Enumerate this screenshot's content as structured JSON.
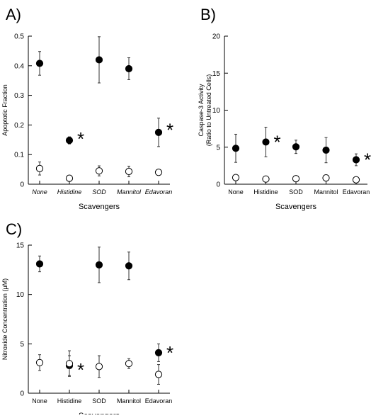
{
  "chart_data": [
    {
      "panel_label": "A)",
      "type": "scatter",
      "xlabel": "Scavengers",
      "ylabel": "Apoptotic Fraction",
      "categories": [
        "None",
        "Histidine",
        "SOD",
        "Mannitol",
        "Edavoran"
      ],
      "italic_categories": true,
      "ylim": [
        0,
        0.5
      ],
      "yticks": [
        "0",
        "0.1",
        "0.2",
        "0.3",
        "0.4",
        "0.5"
      ],
      "series": [
        {
          "marker": "filled-circle",
          "values": [
            0.408,
            0.148,
            0.42,
            0.39,
            0.175
          ],
          "errors": [
            0.04,
            0.012,
            0.078,
            0.037,
            0.048
          ]
        },
        {
          "marker": "open-circle",
          "values": [
            0.053,
            0.02,
            0.045,
            0.043,
            0.04
          ],
          "errors": [
            0.022,
            0.0,
            0.017,
            0.018,
            0.0
          ]
        }
      ],
      "annotations": [
        {
          "text": "*",
          "category": "Histidine",
          "y": 0.16
        },
        {
          "text": "*",
          "category": "Edavoran",
          "y": 0.19
        }
      ]
    },
    {
      "panel_label": "B)",
      "type": "scatter",
      "xlabel": "Scavengers",
      "ylabel": [
        "Caspase-3 Activity",
        "(Ratio to Untreated Cells)"
      ],
      "categories": [
        "None",
        "Histidine",
        "SOD",
        "Mannitol",
        "Edavoran"
      ],
      "italic_categories": false,
      "ylim": [
        0,
        20
      ],
      "yticks": [
        "0",
        "5",
        "10",
        "15",
        "20"
      ],
      "series": [
        {
          "marker": "filled-circle",
          "values": [
            4.85,
            5.7,
            5.05,
            4.6,
            3.3
          ],
          "errors": [
            1.9,
            2.0,
            0.9,
            1.7,
            0.8
          ]
        },
        {
          "marker": "open-circle",
          "values": [
            0.9,
            0.7,
            0.75,
            0.85,
            0.6
          ],
          "errors": [
            0,
            0,
            0,
            0,
            0
          ]
        }
      ],
      "annotations": [
        {
          "text": "*",
          "category": "Histidine",
          "y": 6.0
        },
        {
          "text": "*",
          "category": "Edavoran",
          "y": 3.6
        }
      ]
    },
    {
      "panel_label": "C)",
      "type": "scatter",
      "xlabel": "Scavengers",
      "ylabel": "Nitroxide Concentration (μM)",
      "categories": [
        "None",
        "Histidine",
        "SOD",
        "Mannitol",
        "Edavoran"
      ],
      "italic_categories": false,
      "ylim": [
        0,
        15
      ],
      "yticks": [
        "0",
        "5",
        "10",
        "15"
      ],
      "series": [
        {
          "marker": "filled-circle",
          "values": [
            13.1,
            2.8,
            13.0,
            12.9,
            4.1
          ],
          "errors": [
            0.8,
            1.0,
            1.8,
            1.4,
            0.9
          ]
        },
        {
          "marker": "open-circle",
          "values": [
            3.1,
            3.0,
            2.7,
            3.0,
            1.9
          ],
          "errors": [
            0.8,
            1.3,
            1.1,
            0.5,
            1.0
          ]
        }
      ],
      "annotations": [
        {
          "text": "*",
          "category": "Histidine",
          "y": 2.6
        },
        {
          "text": "*",
          "category": "Edavoran",
          "y": 4.3
        }
      ]
    }
  ]
}
